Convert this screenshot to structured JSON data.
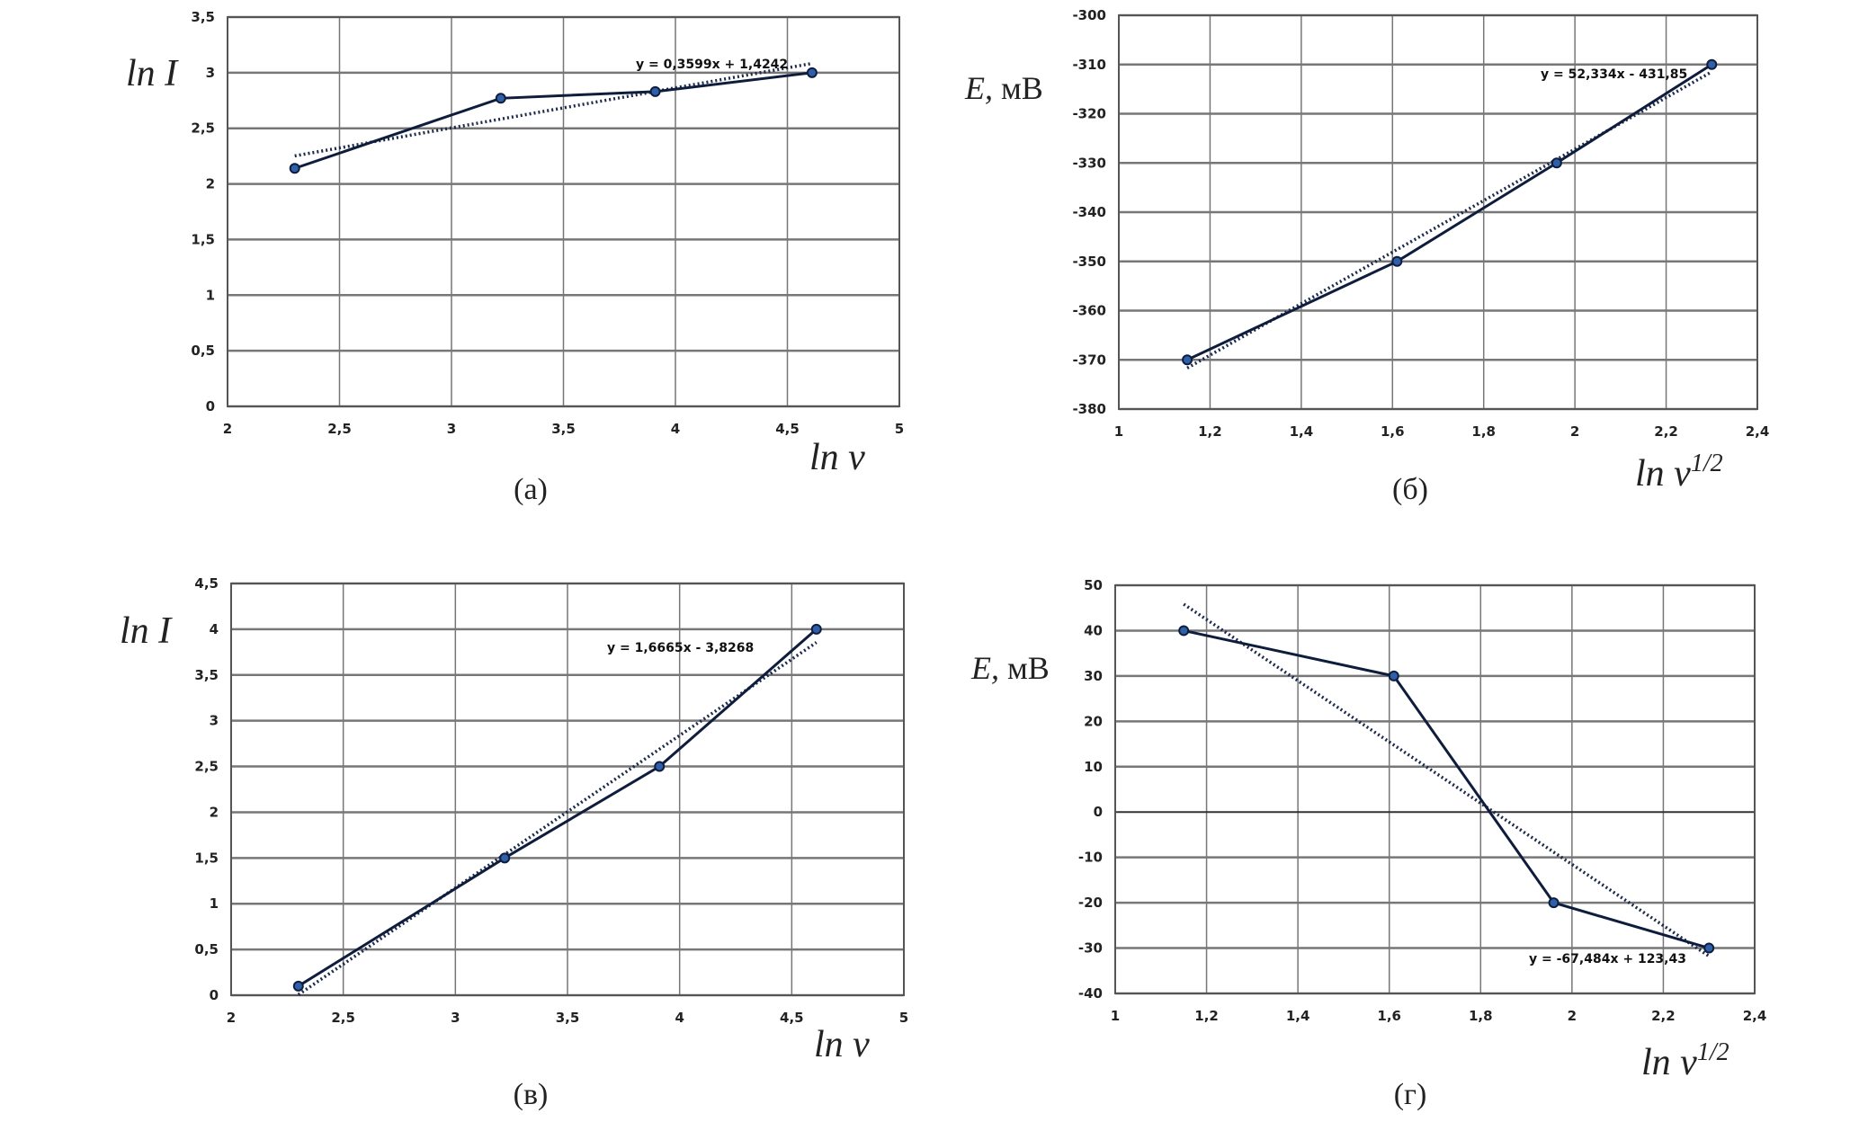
{
  "colors": {
    "line": "#0f1d3d",
    "marker": "#2f5fa8",
    "grid": "#777777",
    "trend": "#1b2a4a"
  },
  "chart_data": [
    {
      "type": "line",
      "caption": "(а)",
      "ylabel": "ln I",
      "xlabel": "ln ν",
      "xlabel_sup": "",
      "ylabel_unit": "",
      "xlim": [
        2,
        5
      ],
      "ylim": [
        0,
        3.5
      ],
      "x_ticks": [
        2,
        2.5,
        3,
        3.5,
        4,
        4.5,
        5
      ],
      "x_tick_labels": [
        "2",
        "2,5",
        "3",
        "3,5",
        "4",
        "4,5",
        "5"
      ],
      "y_ticks": [
        0,
        0.5,
        1,
        1.5,
        2,
        2.5,
        3,
        3.5
      ],
      "y_tick_labels": [
        "0",
        "0,5",
        "1",
        "1,5",
        "2",
        "2,5",
        "3",
        "3,5"
      ],
      "x": [
        2.3,
        3.22,
        3.91,
        4.61
      ],
      "y": [
        2.14,
        2.77,
        2.83,
        3.0
      ],
      "trendline": {
        "slope": 0.3599,
        "intercept": 1.4242,
        "label": "y = 0,3599x + 1,4242"
      },
      "grid": true
    },
    {
      "type": "line",
      "caption": "(б)",
      "ylabel": "E,",
      "ylabel_unit": " мВ",
      "xlabel": "ln ν",
      "xlabel_sup": "1/2",
      "xlim": [
        1,
        2.4
      ],
      "ylim": [
        -380,
        -300
      ],
      "x_ticks": [
        1,
        1.2,
        1.4,
        1.6,
        1.8,
        2,
        2.2,
        2.4
      ],
      "x_tick_labels": [
        "1",
        "1,2",
        "1,4",
        "1,6",
        "1,8",
        "2",
        "2,2",
        "2,4"
      ],
      "y_ticks": [
        -380,
        -370,
        -360,
        -350,
        -340,
        -330,
        -320,
        -310,
        -300
      ],
      "y_tick_labels": [
        "-380",
        "-370",
        "-360",
        "-350",
        "-340",
        "-330",
        "-320",
        "-310",
        "-300"
      ],
      "x": [
        1.15,
        1.61,
        1.96,
        2.3
      ],
      "y": [
        -370,
        -350,
        -330,
        -310
      ],
      "trendline": {
        "slope": 52.334,
        "intercept": -431.85,
        "label": "y = 52,334x - 431,85"
      },
      "grid": true
    },
    {
      "type": "line",
      "caption": "(в)",
      "ylabel": "ln I",
      "ylabel_unit": "",
      "xlabel": "ln ν",
      "xlabel_sup": "",
      "xlim": [
        2,
        5
      ],
      "ylim": [
        0,
        4.5
      ],
      "x_ticks": [
        2,
        2.5,
        3,
        3.5,
        4,
        4.5,
        5
      ],
      "x_tick_labels": [
        "2",
        "2,5",
        "3",
        "3,5",
        "4",
        "4,5",
        "5"
      ],
      "y_ticks": [
        0,
        0.5,
        1,
        1.5,
        2,
        2.5,
        3,
        3.5,
        4,
        4.5
      ],
      "y_tick_labels": [
        "0",
        "0,5",
        "1",
        "1,5",
        "2",
        "2,5",
        "3",
        "3,5",
        "4",
        "4,5"
      ],
      "x": [
        2.3,
        3.22,
        3.91,
        4.61
      ],
      "y": [
        0.1,
        1.5,
        2.5,
        4.0
      ],
      "trendline": {
        "slope": 1.6665,
        "intercept": -3.8268,
        "label": "y = 1,6665x - 3,8268"
      },
      "grid": true
    },
    {
      "type": "line",
      "caption": "(г)",
      "ylabel": "E,",
      "ylabel_unit": " мВ",
      "xlabel": "ln ν",
      "xlabel_sup": "1/2",
      "xlim": [
        1,
        2.4
      ],
      "ylim": [
        -40,
        50
      ],
      "x_ticks": [
        1,
        1.2,
        1.4,
        1.6,
        1.8,
        2,
        2.2,
        2.4
      ],
      "x_tick_labels": [
        "1",
        "1,2",
        "1,4",
        "1,6",
        "1,8",
        "2",
        "2,2",
        "2,4"
      ],
      "y_ticks": [
        -40,
        -30,
        -20,
        -10,
        0,
        10,
        20,
        30,
        40,
        50
      ],
      "y_tick_labels": [
        "-40",
        "-30",
        "-20",
        "-10",
        "0",
        "10",
        "20",
        "30",
        "40",
        "50"
      ],
      "x": [
        1.15,
        1.61,
        1.96,
        2.3
      ],
      "y": [
        40,
        30,
        -20,
        -30
      ],
      "trendline": {
        "slope": -67.484,
        "intercept": 123.43,
        "label": "y = -67,484x + 123,43"
      },
      "grid": true
    }
  ]
}
